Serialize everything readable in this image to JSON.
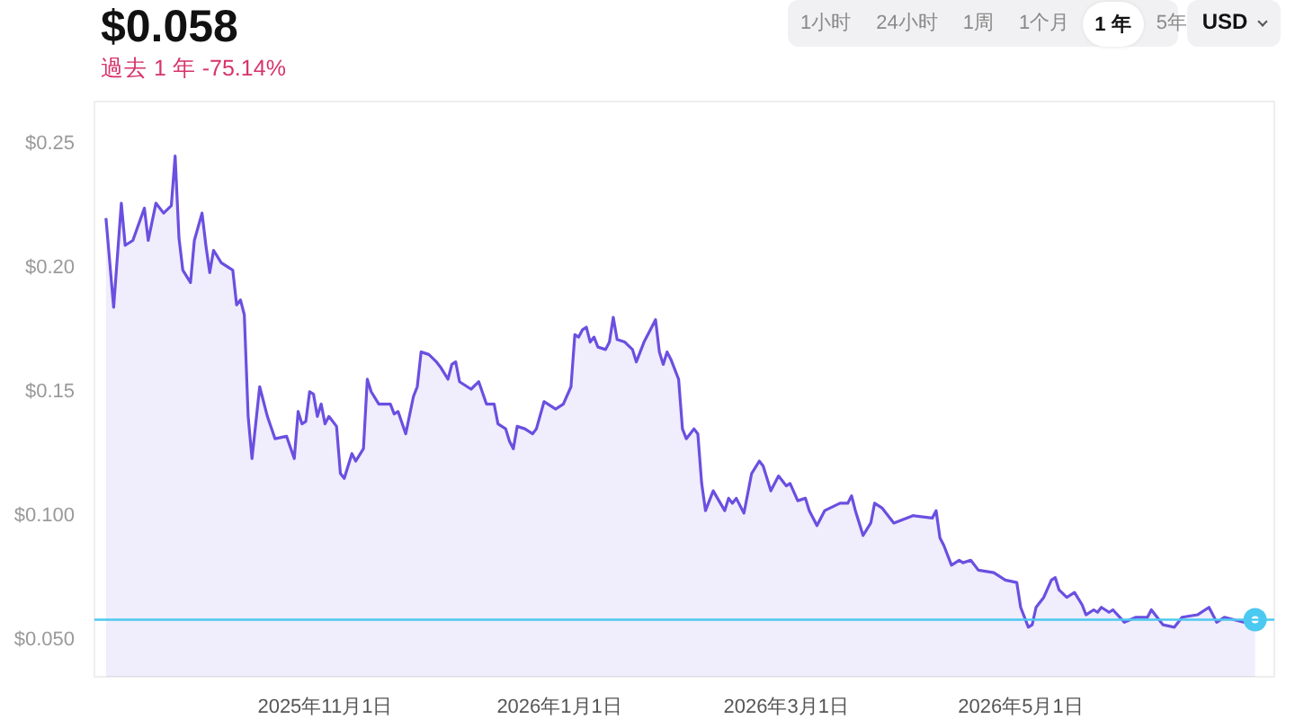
{
  "chart_data": {
    "type": "area",
    "title": "$0.058",
    "subtitle": "過去 1 年 -75.14%",
    "annotations": [
      "1小时",
      "24小时",
      "1周",
      "1个月",
      "1 年",
      "5年",
      "USD"
    ],
    "x": [
      "2025-09-05",
      "2025-09-07",
      "2025-09-09",
      "2025-09-10",
      "2025-09-12",
      "2025-09-15",
      "2025-09-16",
      "2025-09-18",
      "2025-09-20",
      "2025-09-22",
      "2025-09-23",
      "2025-09-24",
      "2025-09-25",
      "2025-09-27",
      "2025-09-28",
      "2025-09-30",
      "2025-10-01",
      "2025-10-02",
      "2025-10-03",
      "2025-10-05",
      "2025-10-08",
      "2025-10-09",
      "2025-10-10",
      "2025-10-11",
      "2025-10-12",
      "2025-10-13",
      "2025-10-15",
      "2025-10-17",
      "2025-10-19",
      "2025-10-22",
      "2025-10-24",
      "2025-10-25",
      "2025-10-26",
      "2025-10-27",
      "2025-10-28",
      "2025-10-29",
      "2025-10-30",
      "2025-10-31",
      "2025-11-01",
      "2025-11-02",
      "2025-11-04",
      "2025-11-05",
      "2025-11-06",
      "2025-11-07",
      "2025-11-08",
      "2025-11-09",
      "2025-11-11",
      "2025-11-12",
      "2025-11-13",
      "2025-11-15",
      "2025-11-18",
      "2025-11-19",
      "2025-11-20",
      "2025-11-22",
      "2025-11-24",
      "2025-11-25",
      "2025-11-26",
      "2025-11-28",
      "2025-11-30",
      "2025-12-01",
      "2025-12-03",
      "2025-12-04",
      "2025-12-05",
      "2025-12-06",
      "2025-12-09",
      "2025-12-11",
      "2025-12-13",
      "2025-12-15",
      "2025-12-16",
      "2025-12-18",
      "2025-12-19",
      "2025-12-20",
      "2025-12-21",
      "2025-12-23",
      "2025-12-25",
      "2025-12-26",
      "2025-12-28",
      "2025-12-31",
      "2026-01-02",
      "2026-01-04",
      "2026-01-05",
      "2026-01-06",
      "2026-01-07",
      "2026-01-08",
      "2026-01-09",
      "2026-01-10",
      "2026-01-11",
      "2026-01-13",
      "2026-01-14",
      "2026-01-15",
      "2026-01-16",
      "2026-01-18",
      "2026-01-20",
      "2026-01-21",
      "2026-01-23",
      "2026-01-24",
      "2026-01-26",
      "2026-01-27",
      "2026-01-28",
      "2026-01-29",
      "2026-01-30",
      "2026-02-01",
      "2026-02-02",
      "2026-02-03",
      "2026-02-04",
      "2026-02-05",
      "2026-02-06",
      "2026-02-07",
      "2026-02-08",
      "2026-02-10",
      "2026-02-13",
      "2026-02-14",
      "2026-02-15",
      "2026-02-16",
      "2026-02-18",
      "2026-02-20",
      "2026-02-22",
      "2026-02-23",
      "2026-02-25",
      "2026-02-27",
      "2026-03-01",
      "2026-03-02",
      "2026-03-04",
      "2026-03-06",
      "2026-03-07",
      "2026-03-09",
      "2026-03-11",
      "2026-03-15",
      "2026-03-17",
      "2026-03-18",
      "2026-03-19",
      "2026-03-21",
      "2026-03-23",
      "2026-03-24",
      "2026-03-26",
      "2026-03-29",
      "2026-04-03",
      "2026-04-08",
      "2026-04-09",
      "2026-04-10",
      "2026-04-11",
      "2026-04-13",
      "2026-04-15",
      "2026-04-16",
      "2026-04-18",
      "2026-04-20",
      "2026-04-24",
      "2026-04-27",
      "2026-04-30",
      "2026-05-01",
      "2026-05-03",
      "2026-05-04",
      "2026-05-05",
      "2026-05-07",
      "2026-05-09",
      "2026-05-10",
      "2026-05-11",
      "2026-05-13",
      "2026-05-15",
      "2026-05-17",
      "2026-05-18",
      "2026-05-20",
      "2026-05-21",
      "2026-05-22",
      "2026-05-24",
      "2026-05-25",
      "2026-05-28",
      "2026-05-31",
      "2026-06-03",
      "2026-06-04",
      "2026-06-07",
      "2026-06-10",
      "2026-06-12",
      "2026-06-16",
      "2026-06-19",
      "2026-06-21",
      "2026-06-23",
      "2026-06-28",
      "2026-07-01"
    ],
    "series": [
      {
        "color": "#6b4fe0",
        "values": [
          0.22,
          0.184,
          0.226,
          0.209,
          0.211,
          0.224,
          0.211,
          0.226,
          0.222,
          0.225,
          0.245,
          0.212,
          0.199,
          0.194,
          0.211,
          0.222,
          0.209,
          0.198,
          0.207,
          0.202,
          0.199,
          0.185,
          0.187,
          0.181,
          0.14,
          0.123,
          0.152,
          0.14,
          0.131,
          0.132,
          0.123,
          0.142,
          0.137,
          0.138,
          0.15,
          0.149,
          0.14,
          0.145,
          0.137,
          0.14,
          0.136,
          0.117,
          0.115,
          0.12,
          0.125,
          0.122,
          0.127,
          0.155,
          0.15,
          0.145,
          0.145,
          0.141,
          0.142,
          0.133,
          0.148,
          0.152,
          0.166,
          0.165,
          0.162,
          0.16,
          0.155,
          0.161,
          0.162,
          0.154,
          0.151,
          0.154,
          0.145,
          0.145,
          0.137,
          0.135,
          0.13,
          0.127,
          0.136,
          0.135,
          0.133,
          0.135,
          0.146,
          0.143,
          0.145,
          0.152,
          0.173,
          0.172,
          0.175,
          0.176,
          0.17,
          0.172,
          0.168,
          0.167,
          0.17,
          0.18,
          0.171,
          0.17,
          0.167,
          0.162,
          0.17,
          0.173,
          0.179,
          0.166,
          0.161,
          0.166,
          0.163,
          0.155,
          0.135,
          0.131,
          0.133,
          0.135,
          0.133,
          0.113,
          0.102,
          0.11,
          0.102,
          0.107,
          0.105,
          0.107,
          0.101,
          0.117,
          0.122,
          0.12,
          0.11,
          0.116,
          0.112,
          0.113,
          0.106,
          0.107,
          0.102,
          0.096,
          0.102,
          0.105,
          0.105,
          0.108,
          0.102,
          0.092,
          0.097,
          0.105,
          0.103,
          0.097,
          0.1,
          0.099,
          0.102,
          0.091,
          0.088,
          0.08,
          0.082,
          0.081,
          0.082,
          0.078,
          0.077,
          0.074,
          0.073,
          0.063,
          0.055,
          0.056,
          0.063,
          0.067,
          0.074,
          0.075,
          0.07,
          0.067,
          0.069,
          0.064,
          0.06,
          0.062,
          0.061,
          0.063,
          0.061,
          0.062,
          0.057,
          0.059,
          0.059,
          0.062,
          0.056,
          0.055,
          0.059,
          0.06,
          0.063,
          0.057,
          0.059,
          0.057,
          0.058
        ]
      }
    ],
    "xlim": [
      "2025-09-02",
      "2026-07-06"
    ],
    "xticks": [
      {
        "value": "2025-11-01",
        "label": "2025年11月1日"
      },
      {
        "value": "2026-01-01",
        "label": "2026年1月1日"
      },
      {
        "value": "2026-03-01",
        "label": "2026年3月1日"
      },
      {
        "value": "2026-05-01",
        "label": "2026年5月1日"
      }
    ],
    "ylim": [
      0.035,
      0.267
    ],
    "yticks": [
      {
        "value": 0.05,
        "label": "$0.050"
      },
      {
        "value": 0.1,
        "label": "$0.100"
      },
      {
        "value": 0.15,
        "label": "$0.15"
      },
      {
        "value": 0.2,
        "label": "$0.20"
      },
      {
        "value": 0.25,
        "label": "$0.25"
      }
    ],
    "ref_lines": [
      {
        "axis": "y",
        "value": 0.058,
        "color": "#4cc9f0"
      }
    ]
  }
}
